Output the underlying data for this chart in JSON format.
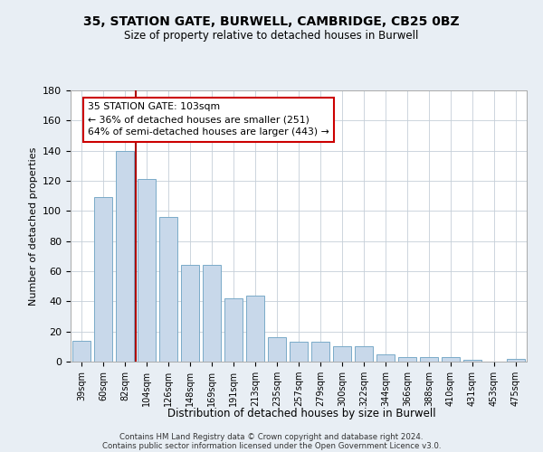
{
  "title_line1": "35, STATION GATE, BURWELL, CAMBRIDGE, CB25 0BZ",
  "title_line2": "Size of property relative to detached houses in Burwell",
  "xlabel": "Distribution of detached houses by size in Burwell",
  "ylabel": "Number of detached properties",
  "categories": [
    "39sqm",
    "60sqm",
    "82sqm",
    "104sqm",
    "126sqm",
    "148sqm",
    "169sqm",
    "191sqm",
    "213sqm",
    "235sqm",
    "257sqm",
    "279sqm",
    "300sqm",
    "322sqm",
    "344sqm",
    "366sqm",
    "388sqm",
    "410sqm",
    "431sqm",
    "453sqm",
    "475sqm"
  ],
  "values": [
    14,
    109,
    140,
    121,
    96,
    64,
    64,
    42,
    44,
    16,
    13,
    13,
    10,
    10,
    5,
    3,
    3,
    3,
    1,
    0,
    2
  ],
  "bar_color": "#c8d8ea",
  "bar_edge_color": "#7aaac8",
  "vline_color": "#aa0000",
  "annotation_text": "35 STATION GATE: 103sqm\n← 36% of detached houses are smaller (251)\n64% of semi-detached houses are larger (443) →",
  "annotation_box_color": "#ffffff",
  "annotation_box_edge": "#cc0000",
  "ylim": [
    0,
    180
  ],
  "yticks": [
    0,
    20,
    40,
    60,
    80,
    100,
    120,
    140,
    160,
    180
  ],
  "footer_line1": "Contains HM Land Registry data © Crown copyright and database right 2024.",
  "footer_line2": "Contains public sector information licensed under the Open Government Licence v3.0.",
  "bg_color": "#e8eef4",
  "plot_bg_color": "#ffffff",
  "grid_color": "#c5cfd8"
}
